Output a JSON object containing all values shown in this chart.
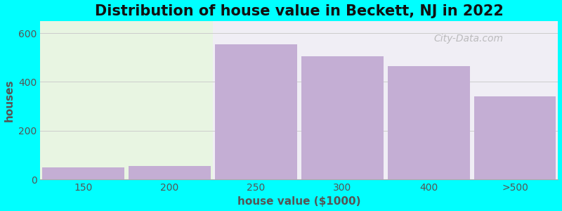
{
  "title": "Distribution of house value in Beckett, NJ in 2022",
  "xlabel": "house value ($1000)",
  "ylabel": "houses",
  "background_color": "#00FFFF",
  "bar_heights": [
    50,
    55,
    555,
    505,
    465,
    340
  ],
  "bar_color": "#c4aed4",
  "xtick_labels": [
    "150",
    "200",
    "250",
    "300",
    "400",
    ">500"
  ],
  "ytick_values": [
    0,
    200,
    400,
    600
  ],
  "ylim": [
    0,
    650
  ],
  "xlim": [
    -0.5,
    5.5
  ],
  "title_fontsize": 15,
  "axis_label_fontsize": 11,
  "tick_fontsize": 10,
  "watermark_text": "City-Data.com",
  "left_bg_color": "#e8f5e2",
  "right_bg_color": "#f0eef5",
  "grid_color": "#cccccc",
  "spine_color": "#aaaaaa"
}
